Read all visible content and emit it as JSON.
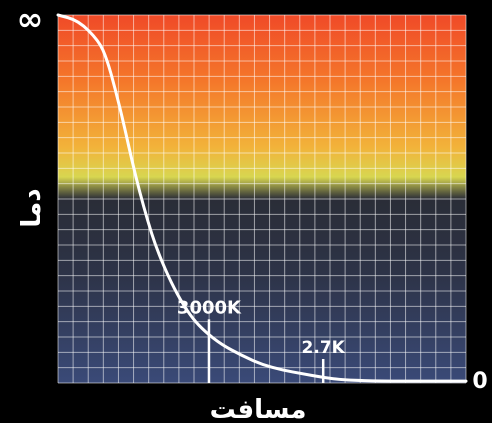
{
  "chart_data": {
    "type": "line",
    "title": "",
    "xlabel": "مسافت",
    "ylabel": "دما",
    "y_top_label": "∞",
    "y_bottom_label": "0",
    "grid": true,
    "background_gradient": [
      "#f04a28",
      "#f4772a",
      "#f2b33a",
      "#d8d650",
      "#2a2d37",
      "#2d3347",
      "#3a4a78"
    ],
    "line_color": "#ffffff",
    "series": [
      {
        "x": [
          0,
          0.05,
          0.1,
          0.12,
          0.14,
          0.16,
          0.18,
          0.2,
          0.22,
          0.24,
          0.27,
          0.3,
          0.33,
          0.36,
          0.4,
          0.45,
          0.5,
          0.55,
          0.6,
          0.65,
          0.7,
          0.8,
          0.9,
          1.0
        ],
        "y": [
          1.0,
          0.985,
          0.93,
          0.88,
          0.8,
          0.71,
          0.61,
          0.52,
          0.44,
          0.37,
          0.29,
          0.225,
          0.175,
          0.14,
          0.105,
          0.075,
          0.05,
          0.035,
          0.025,
          0.015,
          0.008,
          0.005,
          0.005,
          0.005
        ]
      }
    ],
    "annotations": [
      {
        "text": "3000K",
        "x": 0.37,
        "y": 0.135
      },
      {
        "text": "2.7K",
        "x": 0.65,
        "y": 0.015
      }
    ]
  }
}
